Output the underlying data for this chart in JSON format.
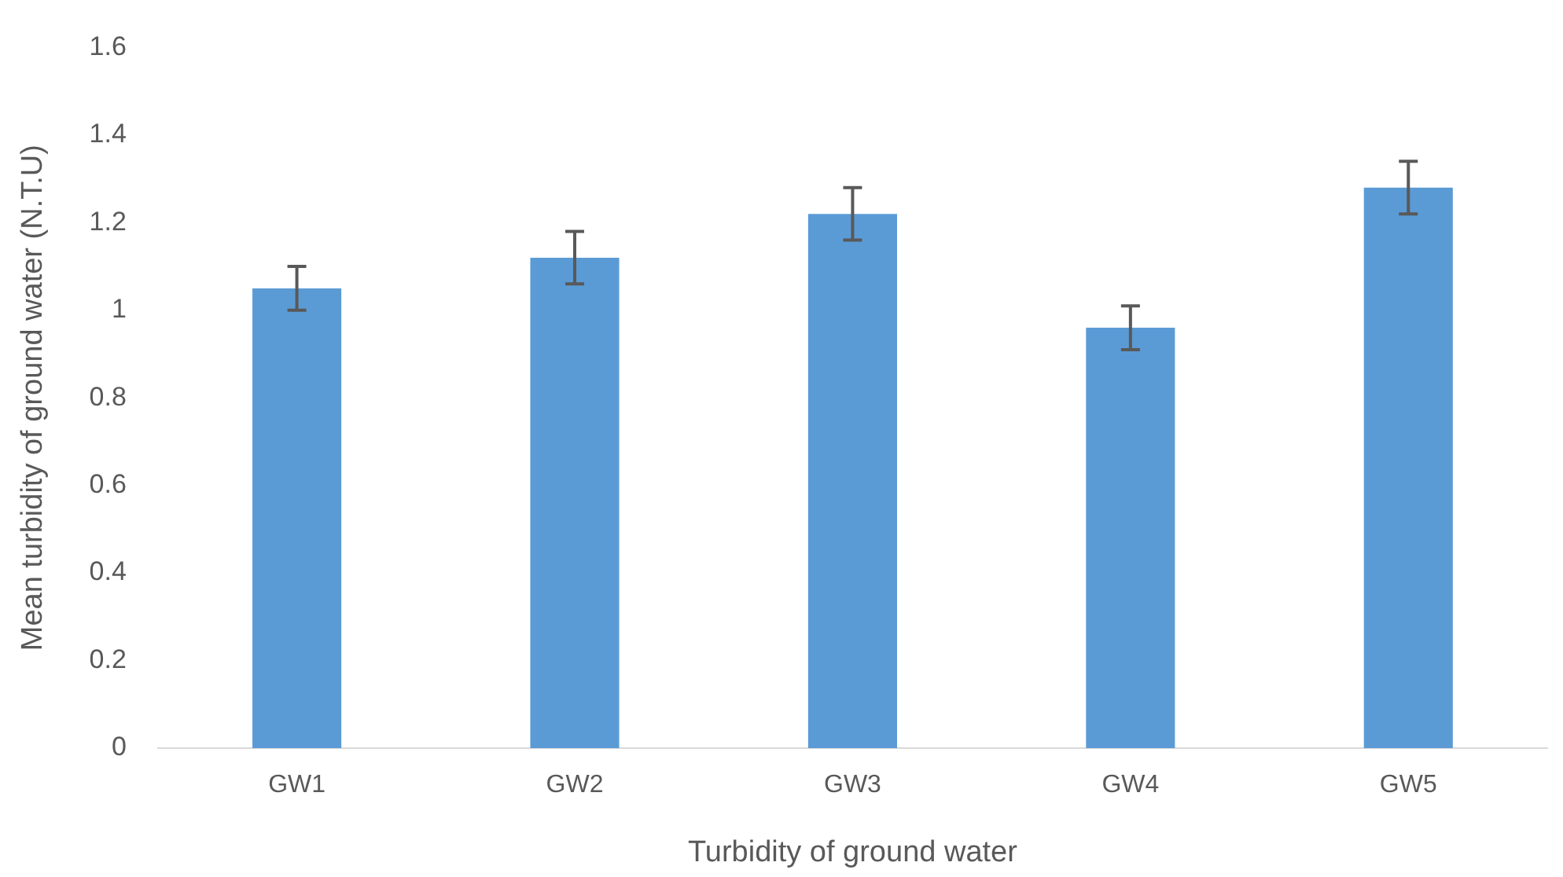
{
  "chart_data": {
    "type": "bar",
    "xlabel": "Turbidity of ground water",
    "ylabel": "Mean turbidity of ground water (N.T.U)",
    "categories": [
      "GW1",
      "GW2",
      "GW3",
      "GW4",
      "GW5"
    ],
    "values": [
      1.05,
      1.12,
      1.22,
      0.96,
      1.28
    ],
    "errors": [
      0.05,
      0.06,
      0.06,
      0.05,
      0.06
    ],
    "color": "#5b9bd5",
    "ylim": [
      0,
      1.6
    ],
    "yticks": [
      0,
      0.2,
      0.4,
      0.6,
      0.8,
      1,
      1.2,
      1.4,
      1.6
    ],
    "grid": false,
    "legend": false
  }
}
